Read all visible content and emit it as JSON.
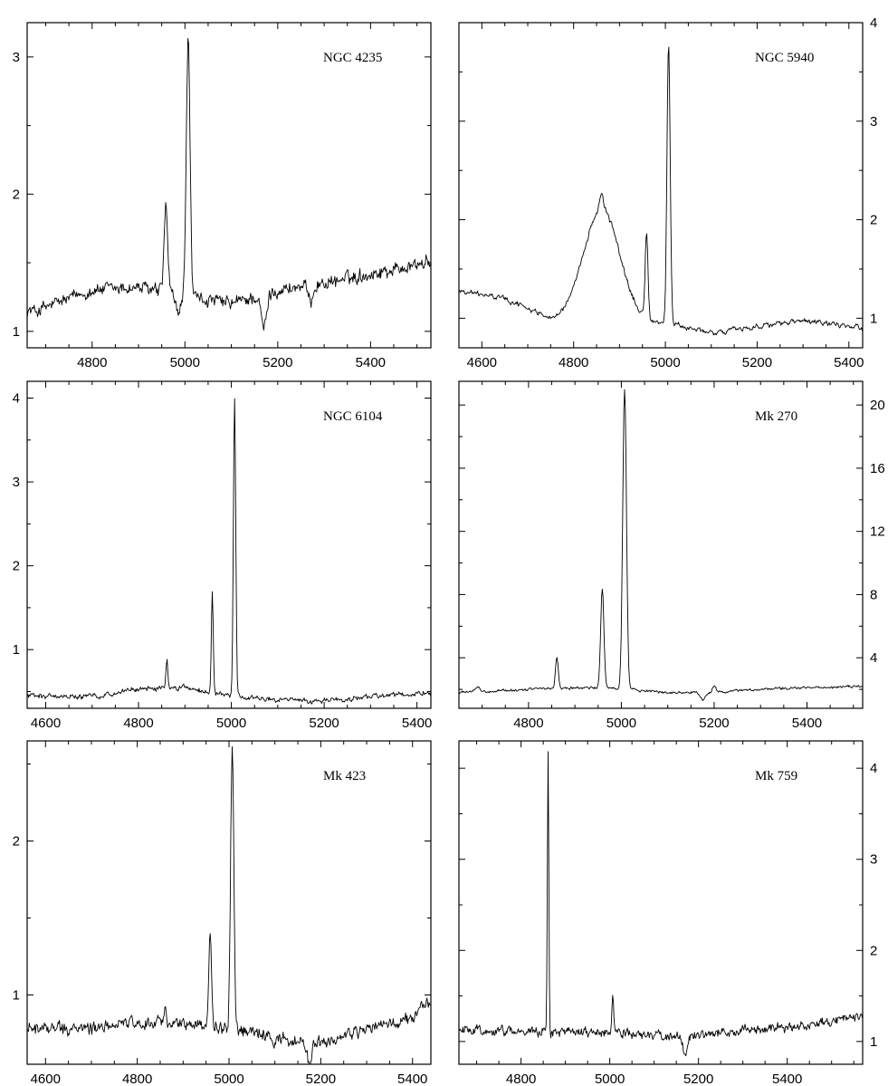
{
  "chart_data": [
    {
      "type": "line",
      "title": "NGC 4235",
      "xlim": [
        4660,
        5530
      ],
      "ylim": [
        0.88,
        3.25
      ],
      "xticks": [
        4800,
        5000,
        5200,
        5400
      ],
      "xtick_labels": [
        "4800",
        "5000",
        "5200",
        "5400"
      ],
      "yticks": [
        1,
        2,
        3
      ],
      "ytick_labels": [
        "1",
        "2",
        "3"
      ],
      "y_axis_side": "left",
      "series": [
        {
          "continuum": [
            [
              4680,
              1.15
            ],
            [
              4800,
              1.3
            ],
            [
              4900,
              1.32
            ],
            [
              5000,
              1.25
            ],
            [
              5100,
              1.2
            ],
            [
              5200,
              1.3
            ],
            [
              5300,
              1.35
            ],
            [
              5400,
              1.42
            ],
            [
              5520,
              1.5
            ]
          ],
          "noise": 0.05,
          "lines": [
            {
              "center": 4959,
              "amplitude": 0.62,
              "width": 4
            },
            {
              "center": 5007,
              "amplitude": 1.9,
              "width": 4
            },
            {
              "center": 4985,
              "amplitude": -0.12,
              "width": 6
            },
            {
              "center": 5170,
              "amplitude": -0.25,
              "width": 6
            },
            {
              "center": 5270,
              "amplitude": -0.12,
              "width": 5
            }
          ]
        }
      ]
    },
    {
      "type": "line",
      "title": "NGC 5940",
      "xlim": [
        4550,
        5430
      ],
      "ylim": [
        0.7,
        4.0
      ],
      "xticks": [
        4600,
        4800,
        5000,
        5200,
        5400
      ],
      "xtick_labels": [
        "4600",
        "4800",
        "5000",
        "5200",
        "5400"
      ],
      "yticks": [
        1,
        2,
        3,
        4
      ],
      "ytick_labels": [
        "1",
        "2",
        "3",
        "4"
      ],
      "y_axis_side": "right",
      "series": [
        {
          "continuum": [
            [
              4550,
              1.28
            ],
            [
              4650,
              1.2
            ],
            [
              4750,
              1.0
            ],
            [
              4900,
              1.0
            ],
            [
              5000,
              0.95
            ],
            [
              5100,
              0.85
            ],
            [
              5200,
              0.92
            ],
            [
              5300,
              0.97
            ],
            [
              5430,
              0.9
            ]
          ],
          "noise": 0.025,
          "lines": [
            {
              "center": 4861,
              "amplitude": 1.12,
              "width": 38
            },
            {
              "center": 4861,
              "amplitude": 0.15,
              "width": 4
            },
            {
              "center": 4959,
              "amplitude": 0.85,
              "width": 3
            },
            {
              "center": 5007,
              "amplitude": 2.85,
              "width": 3.5
            }
          ]
        }
      ]
    },
    {
      "type": "line",
      "title": "NGC 6104",
      "xlim": [
        4560,
        5430
      ],
      "ylim": [
        0.3,
        4.2
      ],
      "xticks": [
        4600,
        4800,
        5000,
        5200,
        5400
      ],
      "xtick_labels": [
        "4600",
        "4800",
        "5000",
        "5200",
        "5400"
      ],
      "yticks": [
        1,
        2,
        3,
        4
      ],
      "ytick_labels": [
        "1",
        "2",
        "3",
        "4"
      ],
      "y_axis_side": "left",
      "series": [
        {
          "continuum": [
            [
              4560,
              0.45
            ],
            [
              4700,
              0.44
            ],
            [
              4800,
              0.53
            ],
            [
              4900,
              0.55
            ],
            [
              5000,
              0.45
            ],
            [
              5100,
              0.4
            ],
            [
              5200,
              0.38
            ],
            [
              5300,
              0.44
            ],
            [
              5430,
              0.48
            ]
          ],
          "noise": 0.03,
          "lines": [
            {
              "center": 4861,
              "amplitude": 0.33,
              "width": 2
            },
            {
              "center": 4959,
              "amplitude": 1.2,
              "width": 2
            },
            {
              "center": 5007,
              "amplitude": 3.52,
              "width": 2.5
            }
          ]
        }
      ]
    },
    {
      "type": "line",
      "title": "Mk 270",
      "xlim": [
        4650,
        5520
      ],
      "ylim": [
        0.8,
        21.5
      ],
      "xticks": [
        4800,
        5000,
        5200,
        5400
      ],
      "xtick_labels": [
        "4800",
        "5000",
        "5200",
        "5400"
      ],
      "yticks": [
        4,
        8,
        12,
        16,
        20
      ],
      "ytick_labels": [
        "4",
        "8",
        "12",
        "16",
        "20"
      ],
      "y_axis_side": "right",
      "series": [
        {
          "continuum": [
            [
              4650,
              1.8
            ],
            [
              4800,
              2.0
            ],
            [
              4900,
              2.1
            ],
            [
              5000,
              2.05
            ],
            [
              5100,
              1.8
            ],
            [
              5200,
              1.8
            ],
            [
              5300,
              2.0
            ],
            [
              5400,
              2.1
            ],
            [
              5520,
              2.2
            ]
          ],
          "noise": 0.08,
          "lines": [
            {
              "center": 4861,
              "amplitude": 2.0,
              "width": 3
            },
            {
              "center": 4959,
              "amplitude": 6.3,
              "width": 3.5
            },
            {
              "center": 5007,
              "amplitude": 19.0,
              "width": 4
            },
            {
              "center": 5175,
              "amplitude": -0.5,
              "width": 5
            },
            {
              "center": 5200,
              "amplitude": 0.4,
              "width": 4
            },
            {
              "center": 4690,
              "amplitude": 0.3,
              "width": 4
            }
          ]
        }
      ]
    },
    {
      "type": "line",
      "title": "Mk 423",
      "xlim": [
        4560,
        5440
      ],
      "ylim": [
        0.55,
        2.65
      ],
      "xticks": [
        4600,
        4800,
        5000,
        5200,
        5400
      ],
      "xtick_labels": [
        "4600",
        "4800",
        "5000",
        "5200",
        "5400"
      ],
      "yticks": [
        1,
        2
      ],
      "ytick_labels": [
        "1",
        "2"
      ],
      "y_axis_side": "left",
      "series": [
        {
          "continuum": [
            [
              4560,
              0.78
            ],
            [
              4700,
              0.78
            ],
            [
              4800,
              0.82
            ],
            [
              4900,
              0.82
            ],
            [
              5000,
              0.78
            ],
            [
              5100,
              0.72
            ],
            [
              5200,
              0.68
            ],
            [
              5300,
              0.78
            ],
            [
              5380,
              0.82
            ],
            [
              5440,
              0.95
            ]
          ],
          "noise": 0.04,
          "lines": [
            {
              "center": 4861,
              "amplitude": 0.1,
              "width": 2
            },
            {
              "center": 4959,
              "amplitude": 0.62,
              "width": 3
            },
            {
              "center": 5007,
              "amplitude": 1.8,
              "width": 3.5
            },
            {
              "center": 5175,
              "amplitude": -0.14,
              "width": 5
            }
          ]
        }
      ]
    },
    {
      "type": "line",
      "title": "Mk 759",
      "xlim": [
        4660,
        5570
      ],
      "ylim": [
        0.75,
        4.3
      ],
      "xticks": [
        4800,
        5000,
        5200,
        5400
      ],
      "xtick_labels": [
        "4800",
        "5000",
        "5200",
        "5400"
      ],
      "yticks": [
        1,
        2,
        3,
        4
      ],
      "ytick_labels": [
        "1",
        "2",
        "3",
        "4"
      ],
      "y_axis_side": "right",
      "series": [
        {
          "continuum": [
            [
              4660,
              1.12
            ],
            [
              4800,
              1.12
            ],
            [
              4900,
              1.1
            ],
            [
              5000,
              1.1
            ],
            [
              5100,
              1.07
            ],
            [
              5200,
              1.05
            ],
            [
              5300,
              1.13
            ],
            [
              5400,
              1.15
            ],
            [
              5500,
              1.22
            ],
            [
              5570,
              1.3
            ]
          ],
          "noise": 0.05,
          "lines": [
            {
              "center": 4861,
              "amplitude": 3.1,
              "width": 1.6
            },
            {
              "center": 5007,
              "amplitude": 0.42,
              "width": 2
            },
            {
              "center": 5170,
              "amplitude": -0.2,
              "width": 5
            }
          ]
        }
      ]
    }
  ]
}
